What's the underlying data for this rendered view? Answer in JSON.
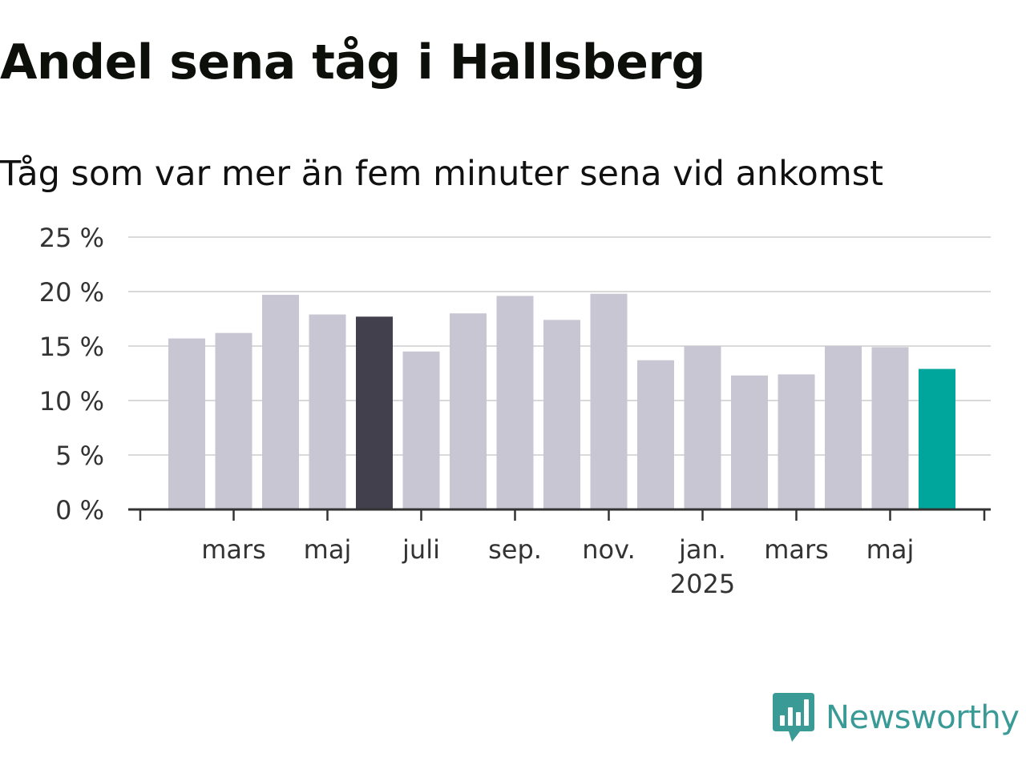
{
  "header": {
    "title": "Andel sena tåg i Hallsberg",
    "subtitle": "Tåg som var mer än fem minuter sena vid ankomst"
  },
  "brand": {
    "name": "Newsworthy",
    "icon": "newsworthy-logo-icon",
    "color": "#3a9a95"
  },
  "colors": {
    "bar_default": "#c8c6d2",
    "bar_year_ago": "#42404d",
    "bar_latest": "#00a59b",
    "grid": "#d9d9d9",
    "axis": "#333333",
    "text": "#333333"
  },
  "chart_data": {
    "type": "bar",
    "categories": [
      "2024-02",
      "2024-03",
      "2024-04",
      "2024-05",
      "2024-06",
      "2024-07",
      "2024-08",
      "2024-09",
      "2024-10",
      "2024-11",
      "2024-12",
      "2025-01",
      "2025-02",
      "2025-03",
      "2025-04",
      "2025-05",
      "2025-06"
    ],
    "values": [
      15.7,
      16.2,
      19.7,
      17.9,
      17.7,
      14.5,
      18.0,
      19.6,
      17.4,
      19.8,
      13.7,
      15.0,
      12.3,
      12.4,
      15.0,
      14.9,
      12.9
    ],
    "highlight": {
      "2024-06": "year_ago",
      "2025-06": "latest"
    },
    "ylim": [
      0,
      25
    ],
    "y_ticks": [
      {
        "value": 0,
        "label": "0 %"
      },
      {
        "value": 5,
        "label": "5 %"
      },
      {
        "value": 10,
        "label": "10 %"
      },
      {
        "value": 15,
        "label": "15 %"
      },
      {
        "value": 20,
        "label": "20 %"
      },
      {
        "value": 25,
        "label": "25 %"
      }
    ],
    "x_ticks": [
      {
        "at": "2024-03",
        "label": "mars",
        "sublabel": ""
      },
      {
        "at": "2024-05",
        "label": "maj",
        "sublabel": ""
      },
      {
        "at": "2024-07",
        "label": "juli",
        "sublabel": ""
      },
      {
        "at": "2024-09",
        "label": "sep.",
        "sublabel": ""
      },
      {
        "at": "2024-11",
        "label": "nov.",
        "sublabel": ""
      },
      {
        "at": "2025-01",
        "label": "jan.",
        "sublabel": "2025"
      },
      {
        "at": "2025-03",
        "label": "mars",
        "sublabel": ""
      },
      {
        "at": "2025-05",
        "label": "maj",
        "sublabel": ""
      }
    ],
    "grid": true,
    "xlabel": "",
    "ylabel": ""
  }
}
